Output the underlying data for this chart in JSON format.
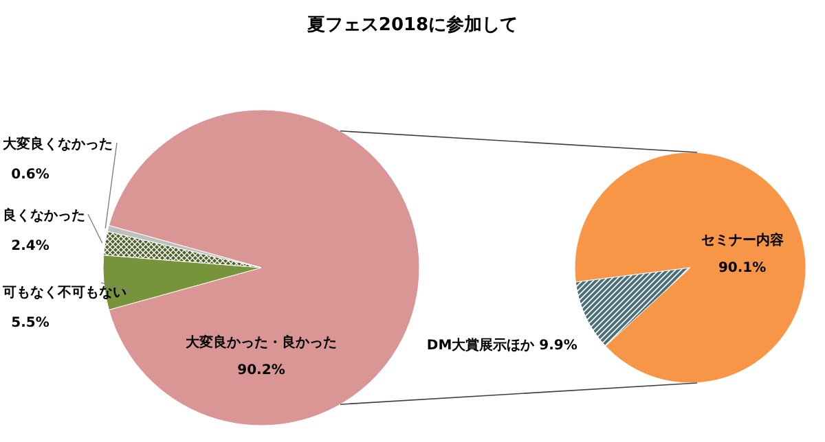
{
  "chart_data": [
    {
      "type": "pie",
      "title": "夏フェス2018に参加して",
      "categories": [
        "大変良かった・良かった",
        "可もなく不可もない",
        "良くなかった",
        "大変良くなかった"
      ],
      "values": [
        90.2,
        5.5,
        2.4,
        0.6
      ],
      "value_labels": [
        "90.2%",
        "5.5%",
        "2.4%",
        "0.6%"
      ],
      "colors": [
        "#d99694",
        "#77933c",
        "#4f6228",
        "#bfbfbf"
      ]
    },
    {
      "type": "pie",
      "categories": [
        "セミナー内容",
        "DM大賞展示ほか"
      ],
      "values": [
        90.1,
        9.9
      ],
      "value_labels": [
        "90.1%",
        "9.9%"
      ],
      "colors": [
        "#f79646",
        "#4b6e78"
      ]
    }
  ]
}
